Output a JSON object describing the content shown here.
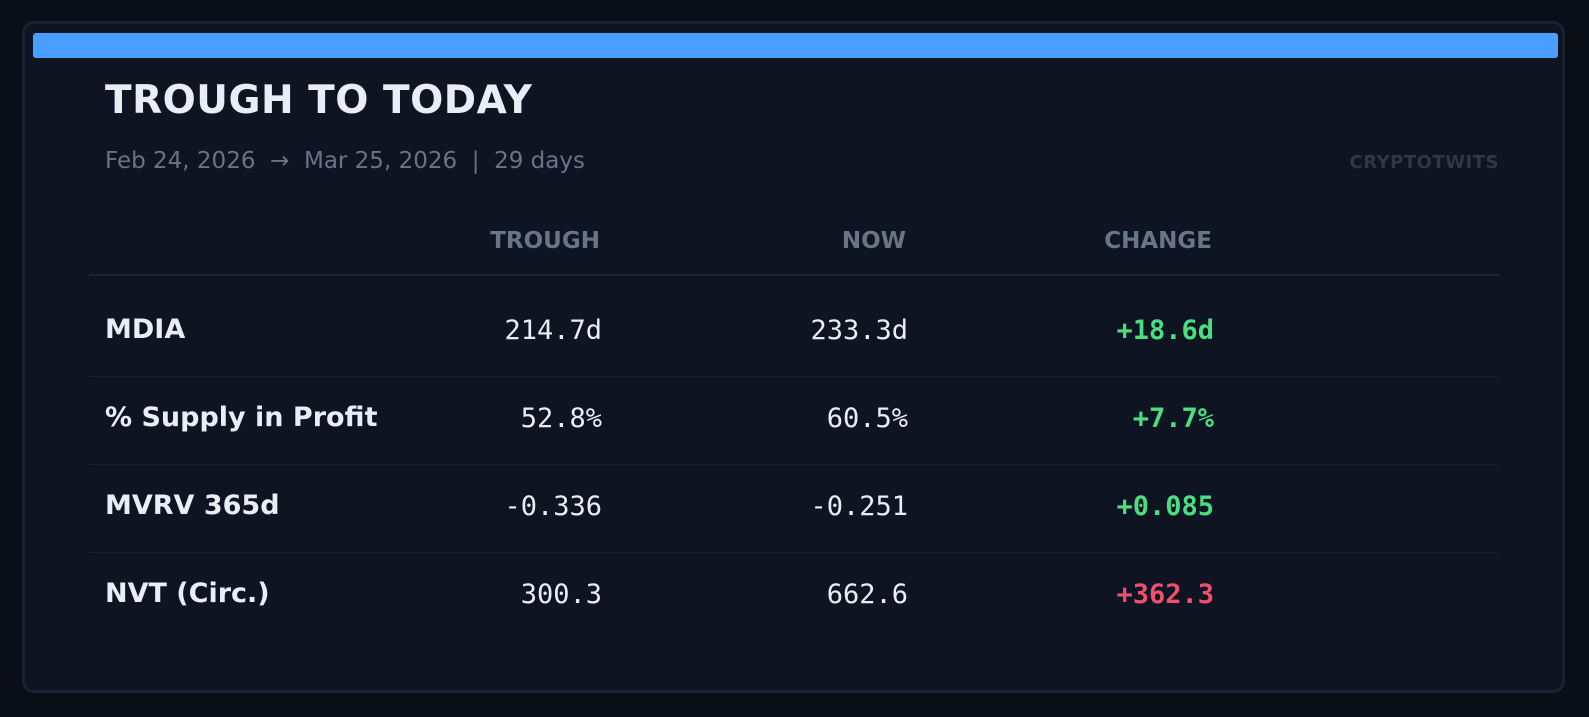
{
  "header": {
    "title": "TROUGH TO TODAY",
    "subtitle": "Feb 24, 2026  →  Mar 25, 2026  |  29 days",
    "brand": "CRYPTOTWITS"
  },
  "table": {
    "columns": [
      "TROUGH",
      "NOW",
      "CHANGE"
    ],
    "rows": [
      {
        "metric": "MDIA",
        "trough": "214.7d",
        "now": "233.3d",
        "change": "+18.6d",
        "change_tone": "positive"
      },
      {
        "metric": "% Supply in Profit",
        "trough": "52.8%",
        "now": "60.5%",
        "change": "+7.7%",
        "change_tone": "positive"
      },
      {
        "metric": "MVRV 365d",
        "trough": "-0.336",
        "now": "-0.251",
        "change": "+0.085",
        "change_tone": "positive"
      },
      {
        "metric": "NVT (Circ.)",
        "trough": "300.3",
        "now": "662.6",
        "change": "+362.3",
        "change_tone": "negative"
      }
    ]
  },
  "colors": {
    "accent": "#4a9eff",
    "positive": "#4ade80",
    "negative": "#f0506e",
    "background": "#0e1421"
  }
}
